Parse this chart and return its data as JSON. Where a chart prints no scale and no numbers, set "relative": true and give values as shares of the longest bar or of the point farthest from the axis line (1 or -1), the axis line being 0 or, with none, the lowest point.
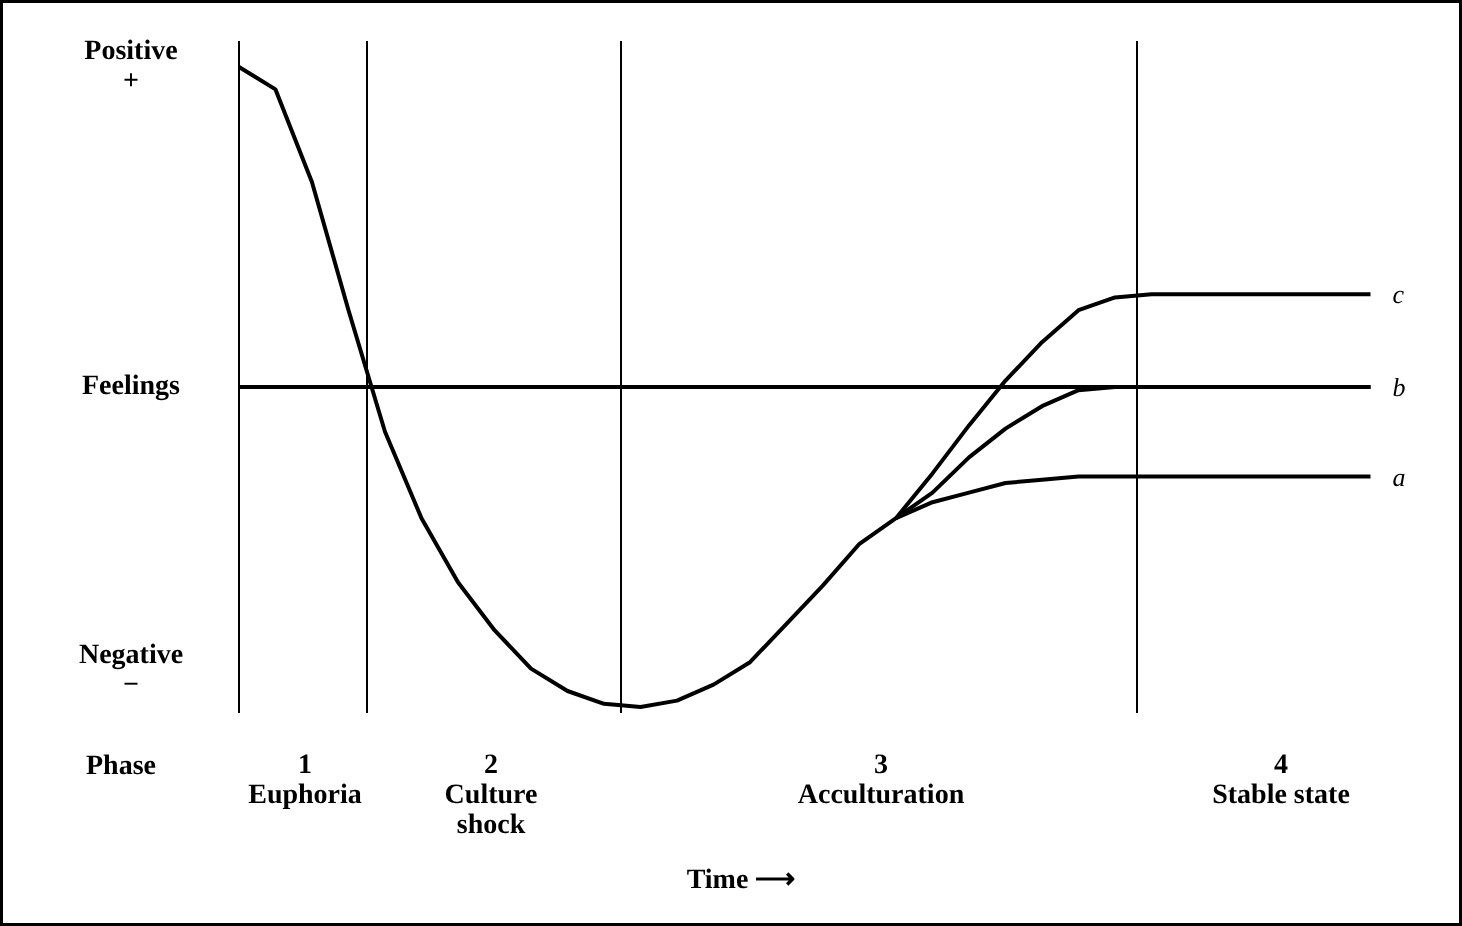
{
  "chart_data": {
    "type": "line",
    "relative": true,
    "grid": false,
    "marker": "none",
    "line_style": "solid",
    "categories": [
      null,
      null,
      null,
      null,
      null,
      null,
      null,
      null,
      null,
      null,
      null,
      null,
      null,
      null,
      null,
      null,
      null,
      null,
      null,
      null,
      null,
      null,
      null,
      null,
      null,
      null,
      null,
      null,
      null,
      null,
      null,
      null
    ],
    "series": [
      {
        "name": "c",
        "color": "#000000",
        "values": [
          1.0,
          0.93,
          0.64,
          0.24,
          -0.14,
          -0.41,
          -0.61,
          -0.76,
          -0.88,
          -0.95,
          -0.99,
          -1.0,
          -0.98,
          -0.93,
          -0.86,
          -0.74,
          -0.62,
          -0.49,
          -0.41,
          -0.27,
          -0.12,
          0.02,
          0.14,
          0.24,
          0.28,
          0.29,
          0.29,
          0.29,
          0.29,
          0.29,
          0.29,
          0.29
        ]
      },
      {
        "name": "b",
        "color": "#000000",
        "values": [
          null,
          null,
          null,
          null,
          null,
          null,
          null,
          null,
          null,
          null,
          null,
          null,
          null,
          null,
          null,
          null,
          null,
          null,
          -0.41,
          -0.33,
          -0.22,
          -0.13,
          -0.06,
          -0.01,
          0,
          0,
          0,
          0,
          0,
          0,
          0,
          0
        ]
      },
      {
        "name": "a",
        "color": "#000000",
        "values": [
          null,
          null,
          null,
          null,
          null,
          null,
          null,
          null,
          null,
          null,
          null,
          null,
          null,
          null,
          null,
          null,
          null,
          null,
          -0.41,
          -0.36,
          -0.33,
          -0.3,
          -0.29,
          -0.28,
          -0.28,
          -0.28,
          -0.28,
          -0.28,
          -0.28,
          -0.28,
          -0.28,
          -0.28
        ]
      }
    ],
    "ref_lines": [
      {
        "axis": "y",
        "value": 0,
        "color": "#000000"
      }
    ],
    "annotations": [
      "Positive\n+",
      "Feelings",
      "Negative\n−",
      "Phase",
      "1\nEuphoria",
      "2\nCulture\nshock",
      "3\nAcculturation",
      "4\nStable state",
      "Time ⟶"
    ]
  }
}
